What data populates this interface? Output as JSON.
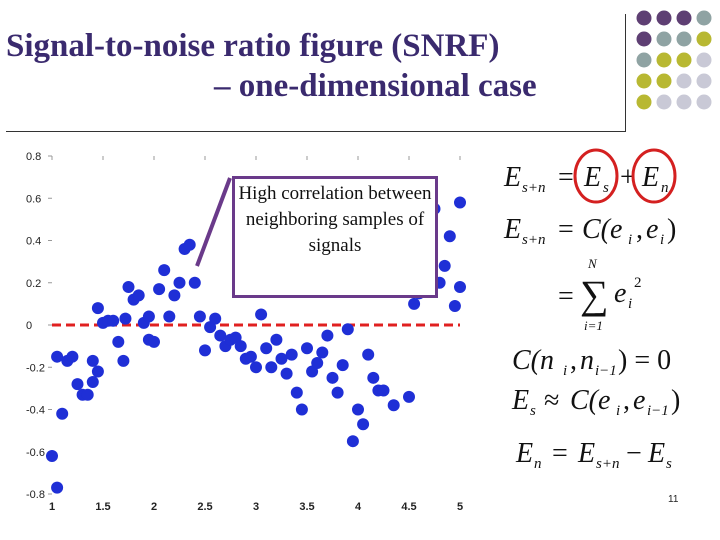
{
  "slide": {
    "title_line1": "Signal-to-noise ratio figure (SNRF)",
    "title_line2": "– one-dimensional case",
    "callout": "High correlation between neighboring samples of signals",
    "page_number": "11"
  },
  "equations": {
    "eq1_lhs": "E",
    "eq1_lhs_sub": "s+n",
    "eq1_t1": "E",
    "eq1_t1_sub": "s",
    "eq1_t2": "E",
    "eq1_t2_sub": "n",
    "eq2_lhs": "E",
    "eq2_lhs_sub": "s+n",
    "eq2_rhs": "C(e",
    "eq3_sum_top": "N",
    "eq3_sum_bottom": "i=1",
    "eq4": "C(n",
    "eq5_lhs": "E",
    "eq6_lhs": "E"
  },
  "colors": {
    "points": "#1f2fd6",
    "zero_line": "#e02020",
    "callout_border": "#6a3a8a",
    "circle": "#d42020",
    "dot_purple": "#5e3f73",
    "dot_teal": "#8fa3a3",
    "dot_olive": "#b8b832",
    "dot_gray": "#c9c9d6"
  },
  "chart_data": {
    "type": "scatter",
    "xlim": [
      1,
      5
    ],
    "ylim": [
      -0.8,
      0.8
    ],
    "x_ticks": [
      "1",
      "1.5",
      "2",
      "2.5",
      "3",
      "3.5",
      "4",
      "4.5",
      "5"
    ],
    "y_ticks": [
      "0.8",
      "0.6",
      "0.4",
      "0.2",
      "0",
      "-0.2",
      "-0.4",
      "-0.6",
      "-0.8"
    ],
    "zero_line": 0,
    "points": [
      [
        1.0,
        -0.62
      ],
      [
        1.05,
        -0.77
      ],
      [
        1.05,
        -0.15
      ],
      [
        1.1,
        -0.42
      ],
      [
        1.15,
        -0.17
      ],
      [
        1.2,
        -0.15
      ],
      [
        1.25,
        -0.28
      ],
      [
        1.3,
        -0.33
      ],
      [
        1.35,
        -0.33
      ],
      [
        1.4,
        -0.17
      ],
      [
        1.4,
        -0.27
      ],
      [
        1.45,
        -0.22
      ],
      [
        1.45,
        0.08
      ],
      [
        1.5,
        0.01
      ],
      [
        1.55,
        0.02
      ],
      [
        1.6,
        0.02
      ],
      [
        1.65,
        -0.08
      ],
      [
        1.7,
        -0.17
      ],
      [
        1.72,
        0.03
      ],
      [
        1.75,
        0.18
      ],
      [
        1.8,
        0.12
      ],
      [
        1.85,
        0.14
      ],
      [
        1.9,
        0.01
      ],
      [
        1.95,
        0.04
      ],
      [
        1.95,
        -0.07
      ],
      [
        2.0,
        -0.08
      ],
      [
        2.05,
        0.17
      ],
      [
        2.1,
        0.26
      ],
      [
        2.15,
        0.04
      ],
      [
        2.2,
        0.14
      ],
      [
        2.25,
        0.2
      ],
      [
        2.3,
        0.36
      ],
      [
        2.35,
        0.38
      ],
      [
        2.4,
        0.2
      ],
      [
        2.45,
        0.04
      ],
      [
        2.5,
        -0.12
      ],
      [
        2.55,
        -0.01
      ],
      [
        2.6,
        0.03
      ],
      [
        2.65,
        -0.05
      ],
      [
        2.7,
        -0.1
      ],
      [
        2.75,
        -0.07
      ],
      [
        2.8,
        -0.06
      ],
      [
        2.85,
        -0.1
      ],
      [
        2.9,
        -0.16
      ],
      [
        2.95,
        -0.15
      ],
      [
        3.0,
        -0.2
      ],
      [
        3.05,
        0.05
      ],
      [
        3.1,
        -0.11
      ],
      [
        3.15,
        -0.2
      ],
      [
        3.2,
        -0.07
      ],
      [
        3.25,
        -0.16
      ],
      [
        3.3,
        -0.23
      ],
      [
        3.35,
        -0.14
      ],
      [
        3.4,
        -0.32
      ],
      [
        3.45,
        -0.4
      ],
      [
        3.5,
        -0.11
      ],
      [
        3.55,
        -0.22
      ],
      [
        3.6,
        -0.18
      ],
      [
        3.65,
        -0.13
      ],
      [
        3.7,
        -0.05
      ],
      [
        3.75,
        -0.25
      ],
      [
        3.8,
        -0.32
      ],
      [
        3.85,
        -0.19
      ],
      [
        3.9,
        -0.02
      ],
      [
        3.95,
        -0.55
      ],
      [
        4.0,
        -0.4
      ],
      [
        4.05,
        -0.47
      ],
      [
        4.1,
        -0.14
      ],
      [
        4.15,
        -0.25
      ],
      [
        4.2,
        -0.31
      ],
      [
        4.25,
        -0.31
      ],
      [
        4.35,
        -0.38
      ],
      [
        4.5,
        -0.34
      ],
      [
        4.5,
        0.37
      ],
      [
        4.55,
        0.1
      ],
      [
        4.6,
        0.15
      ],
      [
        4.65,
        0.43
      ],
      [
        4.7,
        0.28
      ],
      [
        4.75,
        0.55
      ],
      [
        4.8,
        0.2
      ],
      [
        4.85,
        0.28
      ],
      [
        4.9,
        0.42
      ],
      [
        4.95,
        0.09
      ],
      [
        5.0,
        0.18
      ],
      [
        5.0,
        0.58
      ]
    ]
  }
}
